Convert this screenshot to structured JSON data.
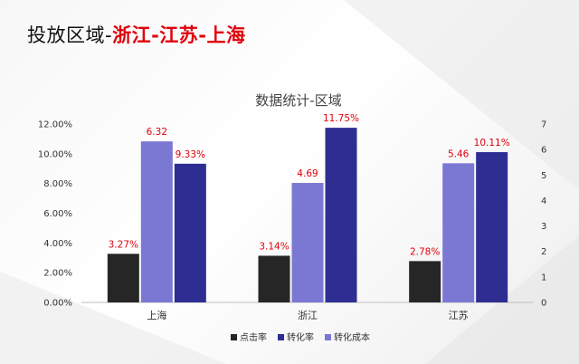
{
  "header": {
    "lead": "投放区域-",
    "accent": "浙江-江苏-上海"
  },
  "colors": {
    "点击率": "#262626",
    "转化率": "#2e2e92",
    "转化成本": "#7b78d4",
    "label": "#e0000b"
  },
  "chart_data": {
    "type": "bar",
    "title": "数据统计-区域",
    "categories": [
      "上海",
      "浙江",
      "江苏"
    ],
    "legend_order": [
      "点击率",
      "转化率",
      "转化成本"
    ],
    "legend_position": "bottom",
    "grid": false,
    "left_axis": {
      "ylim": [
        0,
        12
      ],
      "ticks": [
        0,
        2,
        4,
        6,
        8,
        10,
        12
      ],
      "tick_labels": [
        "0.00%",
        "2.00%",
        "4.00%",
        "6.00%",
        "8.00%",
        "10.00%",
        "12.00%"
      ]
    },
    "right_axis": {
      "ylim": [
        0,
        7
      ],
      "ticks": [
        0,
        1,
        2,
        3,
        4,
        5,
        6,
        7
      ],
      "tick_labels": [
        "0",
        "1",
        "2",
        "3",
        "4",
        "5",
        "6",
        "7"
      ]
    },
    "series": [
      {
        "name": "点击率",
        "axis": "left",
        "values": [
          3.27,
          3.14,
          2.78
        ],
        "labels": [
          "3.27%",
          "3.14%",
          "2.78%"
        ]
      },
      {
        "name": "转化成本",
        "axis": "right",
        "values": [
          6.32,
          4.69,
          5.46
        ],
        "labels": [
          "6.32",
          "4.69",
          "5.46"
        ]
      },
      {
        "name": "转化率",
        "axis": "left",
        "values": [
          9.33,
          11.75,
          10.11
        ],
        "labels": [
          "9.33%",
          "11.75%",
          "10.11%"
        ]
      }
    ]
  }
}
